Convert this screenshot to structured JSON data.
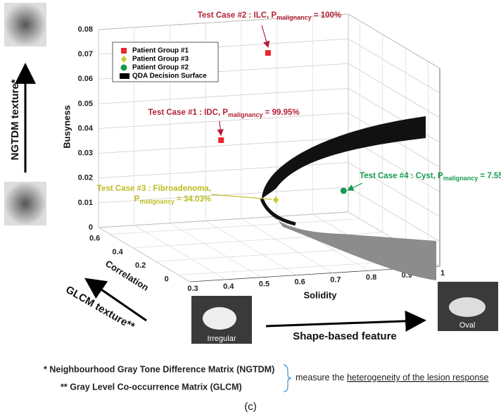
{
  "chart_data": {
    "type": "scatter3d",
    "xlabel": "Solidity",
    "ylabel": "Correlation",
    "zlabel": "Busyness",
    "xlim": [
      0.3,
      1
    ],
    "ylim": [
      -0.1,
      0.7
    ],
    "zlim": [
      0,
      0.08
    ],
    "xticks": [
      0.3,
      0.4,
      0.5,
      0.6,
      0.7,
      0.8,
      0.9,
      1
    ],
    "yticks": [
      0,
      0.2,
      0.4,
      0.6
    ],
    "zticks": [
      0,
      0.01,
      0.02,
      0.03,
      0.04,
      0.05,
      0.06,
      0.07,
      0.08
    ],
    "grid": true,
    "legend": "upper left",
    "series": [
      {
        "name": "Patient Group #1",
        "color": "#e8262b",
        "marker": "square",
        "x": [
          0.614,
          0.736
        ],
        "y": [
          0.608,
          0.578
        ],
        "z": [
          0.035,
          0.07
        ]
      },
      {
        "name": "Patient Group #3",
        "color": "#c9c92a",
        "marker": "diamond",
        "x": [
          0.762
        ],
        "y": [
          0.591
        ],
        "z": [
          0.01
        ]
      },
      {
        "name": "Patient Group #2",
        "color": "#169b4f",
        "marker": "circle",
        "x": [
          0.973
        ],
        "y": [
          0.657
        ],
        "z": [
          0.01
        ]
      }
    ],
    "surface": {
      "name": "QDA Decision Surface",
      "color": "#000000"
    },
    "annotations": [
      {
        "text": "Test Case #2 : ILC, P",
        "sub": "malignancy",
        "rest": " = 100%",
        "color": "#b22234"
      },
      {
        "text": "Test Case #1 : IDC, P",
        "sub": "malignancy",
        "rest": " = 99.95%",
        "color": "#b22234"
      },
      {
        "text": "Test Case #3 : Fibroadenoma,",
        "line2": "P",
        "sub": "malignancy",
        "rest": " = 34.03%",
        "color": "#bdbd22"
      },
      {
        "text": "Test Case #4 : Cyst, P",
        "sub": "malignancy",
        "rest": " = 7.55%",
        "color": "#169b4f"
      }
    ]
  },
  "figure": {
    "ngtdm_label": "NGTDM  texture*",
    "glcm_label": "GLCM  texture**",
    "shape_label": "Shape-based feature",
    "irregular": "Irregular",
    "oval": "Oval",
    "footnote1": "* Neighbourhood Gray Tone Difference Matrix (NGTDM)",
    "footnote2": "** Gray Level Co-occurrence Matrix (GLCM)",
    "measure": "measure the ",
    "measure_underlined": "heterogeneity of the lesion response",
    "panel": "(c)"
  }
}
